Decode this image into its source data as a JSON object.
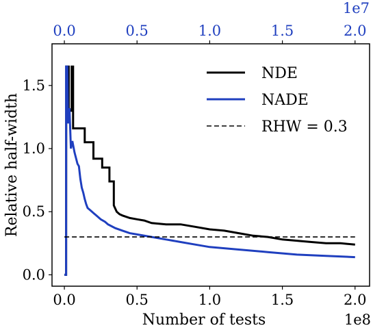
{
  "chart_data": {
    "type": "line",
    "xlabel": "Number of tests",
    "ylabel": "Relative half-width",
    "x_multiplier_label": "1e8",
    "x2_multiplier_label": "1e7",
    "xlim": [
      -0.085,
      2.1
    ],
    "ylim": [
      -0.09,
      1.83
    ],
    "x_ticks": [
      0.0,
      0.5,
      1.0,
      1.5,
      2.0
    ],
    "x_tick_labels": [
      "0.0",
      "0.5",
      "1.0",
      "1.5",
      "2.0"
    ],
    "y_ticks": [
      0.0,
      0.5,
      1.0,
      1.5
    ],
    "y_tick_labels": [
      "0.0",
      "0.5",
      "1.0",
      "1.5"
    ],
    "x2_ticks": [
      0.0,
      0.5,
      1.0,
      1.5,
      2.0
    ],
    "x2_tick_labels": [
      "0.0",
      "0.5",
      "1.0",
      "1.5",
      "2.0"
    ],
    "legend_position": "top-right",
    "colors": {
      "NDE": "#000000",
      "NADE": "#1f3fbf",
      "RHW": "#000000",
      "top_axis": "#1f3fbf"
    },
    "series": [
      {
        "name": "NDE",
        "style": "solid",
        "x": [
          0.0,
          0.012,
          0.013,
          0.03,
          0.03,
          0.05,
          0.05,
          0.06,
          0.06,
          0.14,
          0.14,
          0.2,
          0.2,
          0.26,
          0.26,
          0.31,
          0.31,
          0.34,
          0.34,
          0.36,
          0.38,
          0.4,
          0.45,
          0.5,
          0.55,
          0.6,
          0.7,
          0.8,
          0.9,
          1.0,
          1.1,
          1.2,
          1.3,
          1.4,
          1.5,
          1.6,
          1.7,
          1.8,
          1.9,
          2.0
        ],
        "y": [
          0.0,
          0.0,
          1.65,
          1.65,
          1.3,
          1.3,
          1.65,
          1.65,
          1.16,
          1.16,
          1.05,
          1.05,
          0.92,
          0.92,
          0.85,
          0.85,
          0.74,
          0.74,
          0.55,
          0.5,
          0.48,
          0.47,
          0.45,
          0.44,
          0.43,
          0.41,
          0.4,
          0.4,
          0.38,
          0.36,
          0.35,
          0.33,
          0.31,
          0.3,
          0.28,
          0.27,
          0.26,
          0.25,
          0.25,
          0.24
        ]
      },
      {
        "name": "NADE",
        "style": "solid",
        "x": [
          0.0,
          0.012,
          0.012,
          0.02,
          0.025,
          0.035,
          0.045,
          0.055,
          0.07,
          0.09,
          0.1,
          0.11,
          0.12,
          0.13,
          0.14,
          0.15,
          0.16,
          0.18,
          0.2,
          0.22,
          0.25,
          0.28,
          0.3,
          0.35,
          0.4,
          0.45,
          0.5,
          0.6,
          0.7,
          0.8,
          0.9,
          1.0,
          1.2,
          1.4,
          1.6,
          1.8,
          2.0
        ],
        "y": [
          0.0,
          0.0,
          1.65,
          1.65,
          1.2,
          1.32,
          1.0,
          1.06,
          0.97,
          0.88,
          0.86,
          0.76,
          0.69,
          0.65,
          0.6,
          0.56,
          0.53,
          0.51,
          0.49,
          0.47,
          0.44,
          0.42,
          0.4,
          0.37,
          0.35,
          0.33,
          0.32,
          0.3,
          0.28,
          0.26,
          0.24,
          0.22,
          0.2,
          0.18,
          0.16,
          0.15,
          0.14
        ]
      },
      {
        "name": "RHW = 0.3",
        "style": "dashed",
        "x": [
          0.0,
          2.0
        ],
        "y": [
          0.3,
          0.3
        ]
      }
    ]
  }
}
